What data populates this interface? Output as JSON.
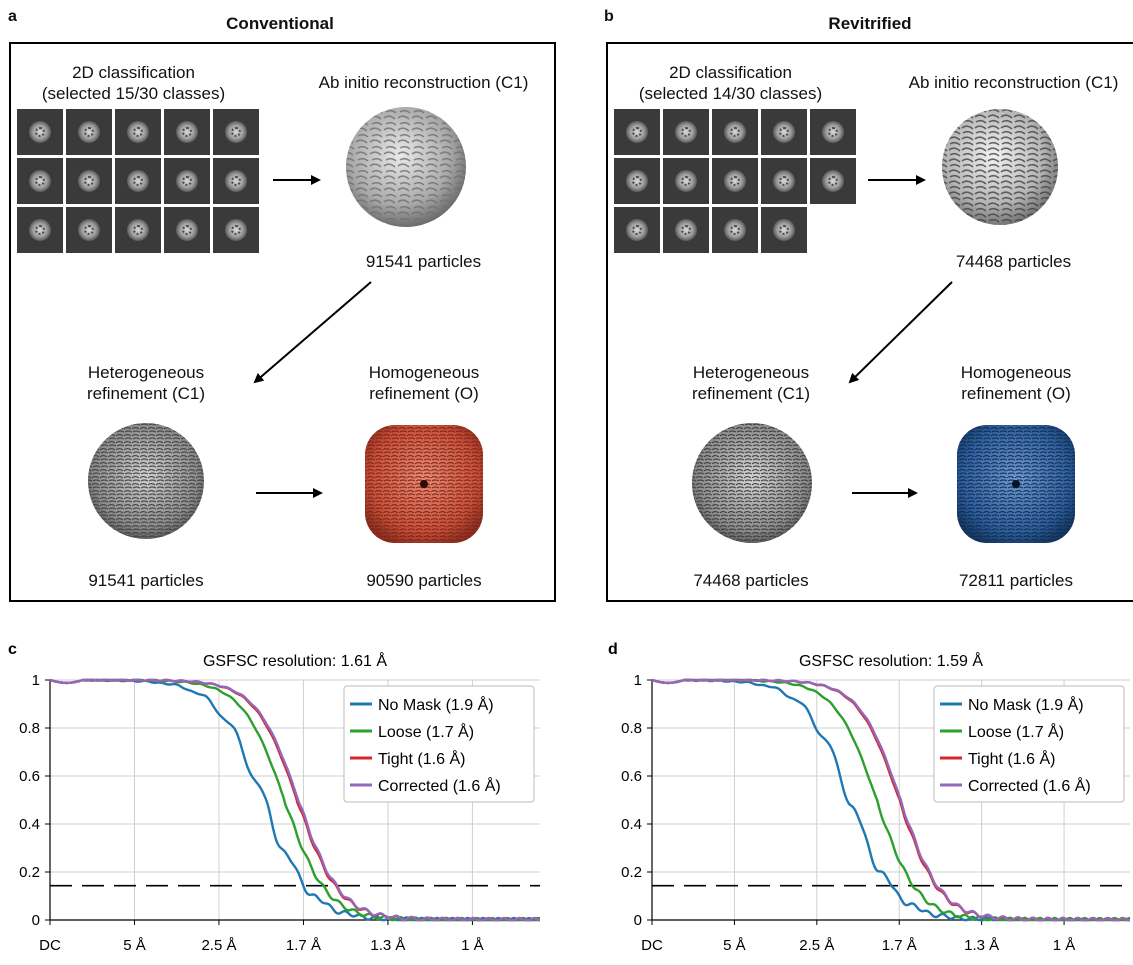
{
  "panel_a": {
    "letter": "a",
    "title": "Conventional",
    "classification_label_1": "2D classification",
    "classification_label_2": "(selected 15/30 classes)",
    "class_count": 15,
    "abinitio_label": "Ab initio reconstruction (C1)",
    "abinitio_particles": "91541 particles",
    "hetero_label_1": "Heterogeneous",
    "hetero_label_2": "refinement (C1)",
    "hetero_particles": "91541 particles",
    "homo_label_1": "Homogeneous",
    "homo_label_2": "refinement (O)",
    "homo_particles": "90590 particles",
    "map_color": "#d9604a"
  },
  "panel_b": {
    "letter": "b",
    "title": "Revitrified",
    "classification_label_1": "2D classification",
    "classification_label_2": "(selected 14/30 classes)",
    "class_count": 14,
    "abinitio_label": "Ab initio reconstruction (C1)",
    "abinitio_particles": "74468 particles",
    "hetero_label_1": "Heterogeneous",
    "hetero_label_2": "refinement (C1)",
    "hetero_particles": "74468 particles",
    "homo_label_1": "Homogeneous",
    "homo_label_2": "refinement (O)",
    "homo_particles": "72811 particles",
    "map_color": "#2f66a8"
  },
  "chart_data": [
    {
      "letter": "c",
      "type": "line",
      "title": "GSFSC resolution: 1.61 Å",
      "xticks": [
        "DC",
        "5 Å",
        "2.5 Å",
        "1.7 Å",
        "1.3 Å",
        "1 Å"
      ],
      "yticks": [
        "0",
        "0.2",
        "0.4",
        "0.6",
        "0.8",
        "1"
      ],
      "ylim": [
        0,
        1
      ],
      "x_range": [
        0,
        1.16
      ],
      "grid": true,
      "legend_position": "top-right",
      "threshold": 0.143,
      "series": [
        {
          "name": "No Mask (1.9 Å)",
          "color": "#1f77b4",
          "half": 0.505,
          "width": 0.055,
          "bump": true
        },
        {
          "name": "Loose (1.7 Å)",
          "color": "#2ca02c",
          "half": 0.555,
          "width": 0.05,
          "bump": false
        },
        {
          "name": "Tight (1.6 Å)",
          "color": "#d62728",
          "half": 0.585,
          "width": 0.05,
          "bump": false
        },
        {
          "name": "Corrected (1.6 Å)",
          "color": "#9467bd",
          "half": 0.588,
          "width": 0.05,
          "bump": false
        }
      ]
    },
    {
      "letter": "d",
      "type": "line",
      "title": "GSFSC resolution: 1.59 Å",
      "xticks": [
        "DC",
        "5 Å",
        "2.5 Å",
        "1.7 Å",
        "1.3 Å",
        "1 Å"
      ],
      "yticks": [
        "0",
        "0.2",
        "0.4",
        "0.6",
        "0.8",
        "1"
      ],
      "ylim": [
        0,
        1
      ],
      "x_range": [
        0,
        1.16
      ],
      "grid": true,
      "legend_position": "top-right",
      "threshold": 0.143,
      "series": [
        {
          "name": "No Mask (1.9 Å)",
          "color": "#1f77b4",
          "half": 0.48,
          "width": 0.055,
          "bump": true
        },
        {
          "name": "Loose (1.7 Å)",
          "color": "#2ca02c",
          "half": 0.545,
          "width": 0.05,
          "bump": false
        },
        {
          "name": "Tight (1.6 Å)",
          "color": "#d62728",
          "half": 0.6,
          "width": 0.05,
          "bump": false
        },
        {
          "name": "Corrected (1.6 Å)",
          "color": "#9467bd",
          "half": 0.603,
          "width": 0.05,
          "bump": false
        }
      ]
    }
  ]
}
